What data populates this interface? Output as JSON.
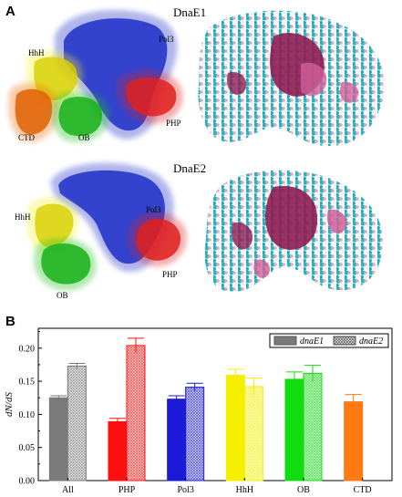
{
  "panel_a": {
    "letter": "A",
    "dnae1": {
      "title": "DnaE1",
      "labels": {
        "hhh": "HhH",
        "pol3": "Pol3",
        "ctd": "CTD",
        "ob": "OB",
        "php": "PHP"
      }
    },
    "dnae2": {
      "title": "DnaE2",
      "labels": {
        "hhh": "HhH",
        "pol3": "Pol3",
        "ob": "OB",
        "php": "PHP"
      }
    },
    "domain_colors": {
      "pol3": "#1f2fc8",
      "php": "#e02020",
      "hhh": "#f0f020",
      "ob": "#20c020",
      "ctd": "#f07010"
    },
    "surface_colors": [
      "#19b9c6",
      "#f3f3f3",
      "#e9a3be",
      "#d0609a",
      "#8e1d53"
    ]
  },
  "panel_b": {
    "letter": "B"
  },
  "chart_data": {
    "type": "bar",
    "title": "",
    "xlabel": "",
    "ylabel": "dN/dS",
    "categories": [
      "All",
      "PHP",
      "Pol3",
      "HhH",
      "OB",
      "CTD"
    ],
    "category_colors": [
      "#7a7a7a",
      "#ff1010",
      "#1a1ad8",
      "#f4f000",
      "#10dc10",
      "#ff7a10"
    ],
    "series": [
      {
        "name": "dnaE1",
        "pattern": "solid",
        "values": [
          0.125,
          0.089,
          0.123,
          0.159,
          0.153,
          0.119
        ],
        "errors": [
          0.003,
          0.005,
          0.005,
          0.009,
          0.011,
          0.011
        ]
      },
      {
        "name": "dnaE2",
        "pattern": "crosshatch",
        "values": [
          0.173,
          0.204,
          0.141,
          0.142,
          0.162,
          null
        ],
        "errors": [
          0.004,
          0.011,
          0.006,
          0.013,
          0.012,
          null
        ]
      }
    ],
    "ylim": [
      0,
      0.23
    ],
    "yticks": [
      "0.00",
      "0.05",
      "0.10",
      "0.15",
      "0.20"
    ],
    "ytick_values": [
      0,
      0.05,
      0.1,
      0.15,
      0.2
    ],
    "legend_position": "top-right",
    "grid": false
  }
}
